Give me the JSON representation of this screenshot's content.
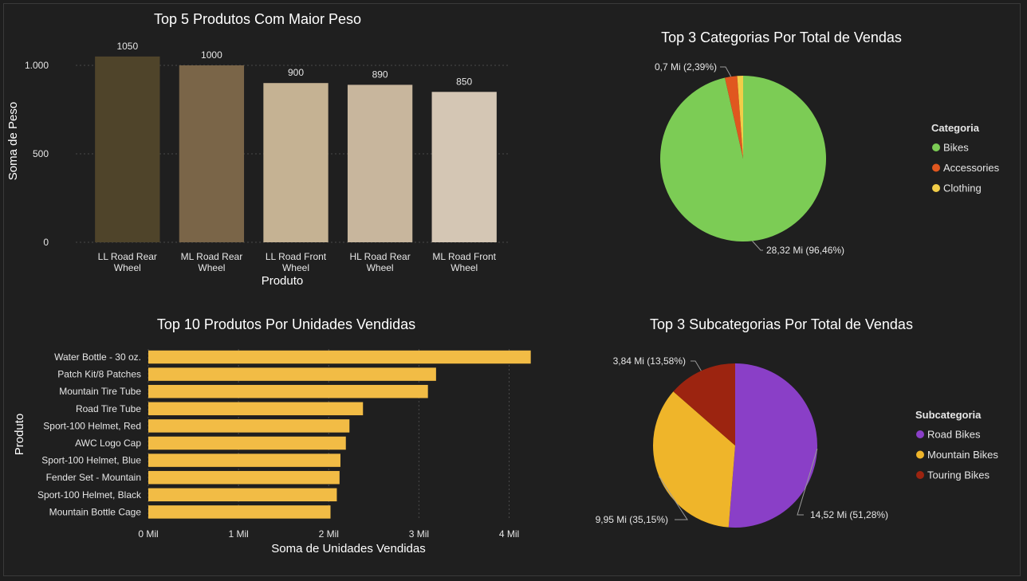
{
  "chart_data": [
    {
      "id": "peso",
      "type": "bar",
      "title": "Top 5 Produtos Com Maior Peso",
      "xlabel": "Produto",
      "ylabel": "Soma de Peso",
      "categories": [
        [
          "LL Road Rear",
          "Wheel"
        ],
        [
          "ML Road Rear",
          "Wheel"
        ],
        [
          "LL Road Front",
          "Wheel"
        ],
        [
          "HL Road Rear",
          "Wheel"
        ],
        [
          "ML Road Front",
          "Wheel"
        ]
      ],
      "values": [
        1050,
        1000,
        900,
        890,
        850
      ],
      "data_labels": [
        "1050",
        "1000",
        "900",
        "890",
        "850"
      ],
      "bar_colors": [
        "#4f442a",
        "#7a6548",
        "#c5b293",
        "#c8b69d",
        "#d4c6b4"
      ],
      "yticks": [
        0,
        500,
        1000
      ],
      "ytick_labels": [
        "0",
        "500",
        "1.000"
      ],
      "ylim": [
        0,
        1100
      ],
      "grid": true
    },
    {
      "id": "categorias",
      "type": "pie",
      "title": "Top 3 Categorias Por Total de Vendas",
      "legend_title": "Categoria",
      "legend_position": "right",
      "labels": [
        "Bikes",
        "Accessories",
        "Clothing"
      ],
      "values": [
        96.46,
        2.39,
        1.15
      ],
      "colors": [
        "#7ccc55",
        "#e0571f",
        "#f2cd48"
      ],
      "data_labels": [
        {
          "index": 0,
          "text": "28,32 Mi (96,46%)"
        },
        {
          "index": 1,
          "text": "0,7 Mi (2,39%)"
        }
      ]
    },
    {
      "id": "unidades",
      "type": "bar",
      "orientation": "horizontal",
      "title": "Top 10 Produtos Por Unidades Vendidas",
      "xlabel": "Soma de Unidades Vendidas",
      "ylabel": "Produto",
      "categories": [
        "Water Bottle - 30 oz.",
        "Patch Kit/8 Patches",
        "Mountain Tire Tube",
        "Road Tire Tube",
        "Sport-100 Helmet, Red",
        "AWC Logo Cap",
        "Sport-100 Helmet, Blue",
        "Fender Set - Mountain",
        "Sport-100 Helmet, Black",
        "Mountain Bottle Cage"
      ],
      "values": [
        4240,
        3190,
        3100,
        2380,
        2230,
        2190,
        2130,
        2120,
        2090,
        2020
      ],
      "bar_color": "#f2bc45",
      "xticks": [
        0,
        1000,
        2000,
        3000,
        4000
      ],
      "xtick_labels": [
        "0 Mil",
        "1 Mil",
        "2 Mil",
        "3 Mil",
        "4 Mil"
      ],
      "xlim": [
        0,
        4400
      ],
      "grid": true
    },
    {
      "id": "subcategorias",
      "type": "pie",
      "title": "Top 3 Subcategorias Por Total de Vendas",
      "legend_title": "Subcategoria",
      "legend_position": "right",
      "labels": [
        "Road Bikes",
        "Mountain Bikes",
        "Touring Bikes"
      ],
      "values": [
        51.28,
        35.15,
        13.58
      ],
      "colors": [
        "#8a3fc7",
        "#efb52a",
        "#9c2410"
      ],
      "data_labels": [
        {
          "index": 0,
          "text": "14,52 Mi (51,28%)"
        },
        {
          "index": 1,
          "text": "9,95 Mi (35,15%)"
        },
        {
          "index": 2,
          "text": "3,84 Mi (13,58%)"
        }
      ]
    }
  ]
}
